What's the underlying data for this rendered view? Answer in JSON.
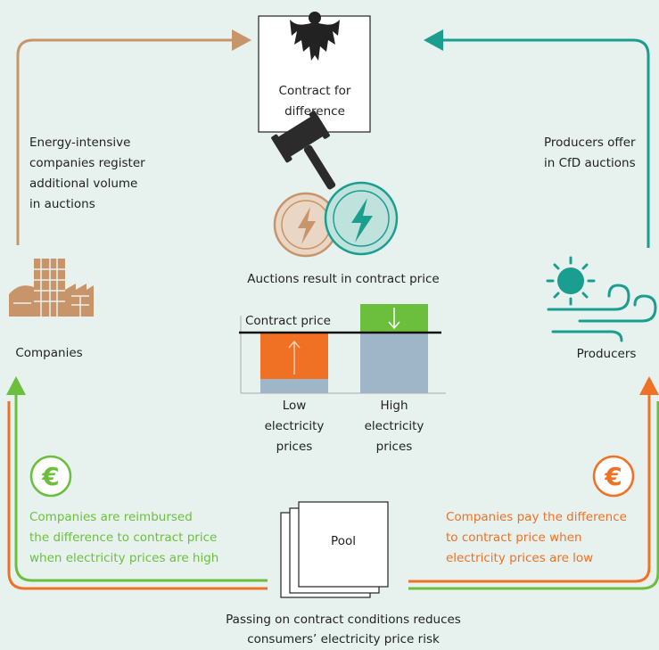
{
  "top_box": {
    "label": [
      "Contract for",
      "difference"
    ]
  },
  "left_note": [
    "Energy-intensive",
    "companies register",
    "additional volume",
    "in auctions"
  ],
  "right_note": [
    "Producers offer",
    "in CfD auctions"
  ],
  "auction_result": "Auctions result in contract price",
  "companies": "Companies",
  "producers": "Producers",
  "mini_chart": {
    "line_label": "Contract price",
    "low": [
      "Low",
      "electricity",
      "prices"
    ],
    "high": [
      "High",
      "electricity",
      "prices"
    ]
  },
  "reimbursed_note": [
    "Companies are reimbursed",
    "the difference to contract price",
    "when electricity prices are high"
  ],
  "pay_note": [
    "Companies pay the difference",
    "to contract price when",
    "electricity prices are low"
  ],
  "pool": "Pool",
  "bottom_note": [
    "Passing on contract conditions reduces",
    "consumers’ electricity price risk"
  ]
}
